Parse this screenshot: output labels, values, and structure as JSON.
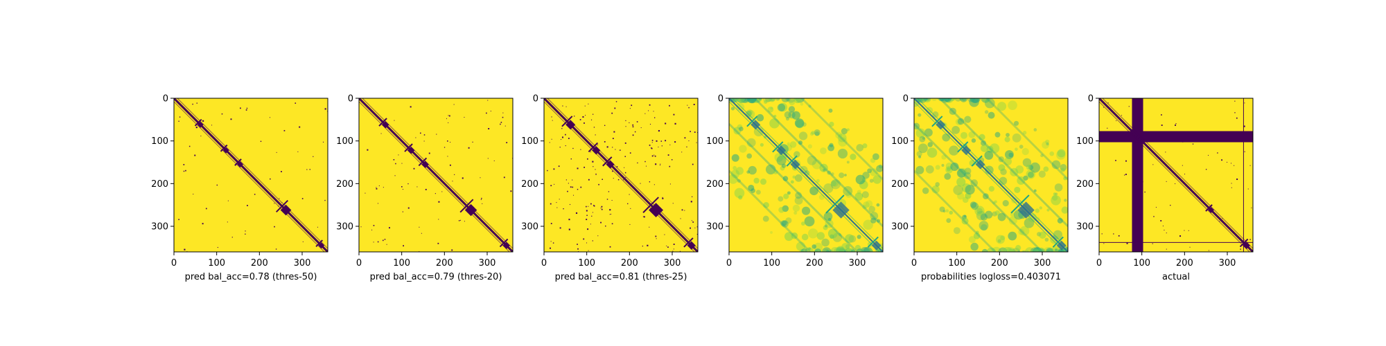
{
  "colors": {
    "background_yellow": "#fde725",
    "contact_purple": "#440154",
    "mid_green": "#21a585",
    "light_green": "#7ad151",
    "teal": "#2c728e",
    "spine": "#000000"
  },
  "chart_data": [
    {
      "type": "heatmap",
      "colormap": "viridis",
      "matrix_size": 360,
      "xlim": [
        0,
        360
      ],
      "ylim": [
        360,
        0
      ],
      "xticks": [
        "0",
        "100",
        "200",
        "300"
      ],
      "yticks": [
        "0",
        "100",
        "200",
        "300"
      ],
      "xlabel": "pred bal_acc=0.78 (thres-50)",
      "diagonal_contact": true,
      "blocks": [
        [
          62,
          5
        ],
        [
          122,
          5
        ],
        [
          155,
          5
        ],
        [
          262,
          9
        ],
        [
          345,
          5
        ]
      ]
    },
    {
      "type": "heatmap",
      "colormap": "viridis",
      "matrix_size": 360,
      "xlim": [
        0,
        360
      ],
      "ylim": [
        360,
        0
      ],
      "xticks": [
        "0",
        "100",
        "200",
        "300"
      ],
      "yticks": [
        "0",
        "100",
        "200",
        "300"
      ],
      "xlabel": "pred bal_acc=0.79 (thres-20)",
      "diagonal_contact": true,
      "blocks": [
        [
          62,
          6
        ],
        [
          122,
          6
        ],
        [
          155,
          6
        ],
        [
          262,
          10
        ],
        [
          345,
          6
        ]
      ]
    },
    {
      "type": "heatmap",
      "colormap": "viridis",
      "matrix_size": 360,
      "xlim": [
        0,
        360
      ],
      "ylim": [
        360,
        0
      ],
      "xticks": [
        "0",
        "100",
        "200",
        "300"
      ],
      "yticks": [
        "0",
        "100",
        "200",
        "300"
      ],
      "xlabel": "pred bal_acc=0.81 (thres-25)",
      "diagonal_contact": true,
      "blocks": [
        [
          62,
          8
        ],
        [
          122,
          7
        ],
        [
          155,
          7
        ],
        [
          262,
          12
        ],
        [
          345,
          7
        ]
      ]
    },
    {
      "type": "heatmap",
      "colormap": "viridis",
      "matrix_size": 360,
      "xlim": [
        0,
        360
      ],
      "ylim": [
        360,
        0
      ],
      "xticks": [
        "0",
        "100",
        "200",
        "300"
      ],
      "yticks": [
        "0",
        "100",
        "200",
        "300"
      ],
      "xlabel": "",
      "diagonal_contact": true,
      "continuous_probabilities": true,
      "blocks": [
        [
          62,
          8
        ],
        [
          122,
          8
        ],
        [
          155,
          8
        ],
        [
          262,
          14
        ],
        [
          345,
          8
        ]
      ]
    },
    {
      "type": "heatmap",
      "colormap": "viridis",
      "matrix_size": 360,
      "xlim": [
        0,
        360
      ],
      "ylim": [
        360,
        0
      ],
      "xticks": [
        "0",
        "100",
        "200",
        "300"
      ],
      "yticks": [
        "0",
        "100",
        "200",
        "300"
      ],
      "xlabel": "probabilities logloss=0.403071",
      "diagonal_contact": true,
      "continuous_probabilities": true,
      "blocks": [
        [
          62,
          8
        ],
        [
          122,
          8
        ],
        [
          155,
          8
        ],
        [
          262,
          14
        ],
        [
          345,
          8
        ]
      ]
    },
    {
      "type": "heatmap",
      "colormap": "viridis",
      "matrix_size": 360,
      "xlim": [
        0,
        360
      ],
      "ylim": [
        360,
        0
      ],
      "xticks": [
        "0",
        "100",
        "200",
        "300"
      ],
      "yticks": [
        "0",
        "100",
        "200",
        "300"
      ],
      "xlabel": "actual",
      "diagonal_contact": true,
      "masked_band": [
        77,
        103
      ],
      "boundary_line": 338,
      "blocks": [
        [
          262,
          5
        ],
        [
          345,
          6
        ]
      ]
    }
  ]
}
